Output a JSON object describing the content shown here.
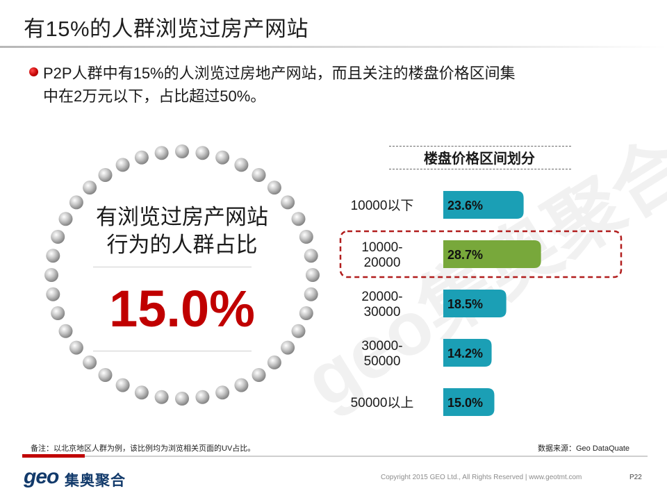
{
  "slide": {
    "title": "有15%的人群浏览过房产网站",
    "bullet_line_1": "P2P人群中有15%的人浏览过房地产网站，而且关注的楼盘价格区间集",
    "bullet_line_2": "中在2万元以下，占比超过50%。"
  },
  "ring": {
    "label_line_1": "有浏览过房产网站",
    "label_line_2": "行为的人群占比",
    "value": "15.0%"
  },
  "chart_data": {
    "type": "bar",
    "orientation": "horizontal",
    "title": "楼盘价格区间划分",
    "categories": [
      [
        "10000以下"
      ],
      [
        "10000-",
        "20000"
      ],
      [
        "20000-",
        "30000"
      ],
      [
        "30000-",
        "50000"
      ],
      [
        "50000以上"
      ]
    ],
    "values": [
      23.6,
      28.7,
      18.5,
      14.2,
      15.0
    ],
    "data_labels": [
      "23.6%",
      "28.7%",
      "18.5%",
      "14.2%",
      "15.0%"
    ],
    "xlim": [
      0,
      30
    ],
    "highlight_index": 1,
    "colors": {
      "bar": "#1b9fb5",
      "highlight": "#78a83b",
      "highlight_border": "#b11d1d"
    }
  },
  "footer": {
    "note": "备注：以北京地区人群为例，该比例均为浏览相关页面的UV占比。",
    "source": "数据来源：Geo DataQuate",
    "logo_geo": "geo",
    "logo_cn": "集奥聚合",
    "copyright": "Copyright 2015 GEO Ltd., All Rights Reserved  |  www.geotmt.com",
    "page": "P22"
  },
  "watermark": {
    "text": "geo集奥聚合"
  }
}
